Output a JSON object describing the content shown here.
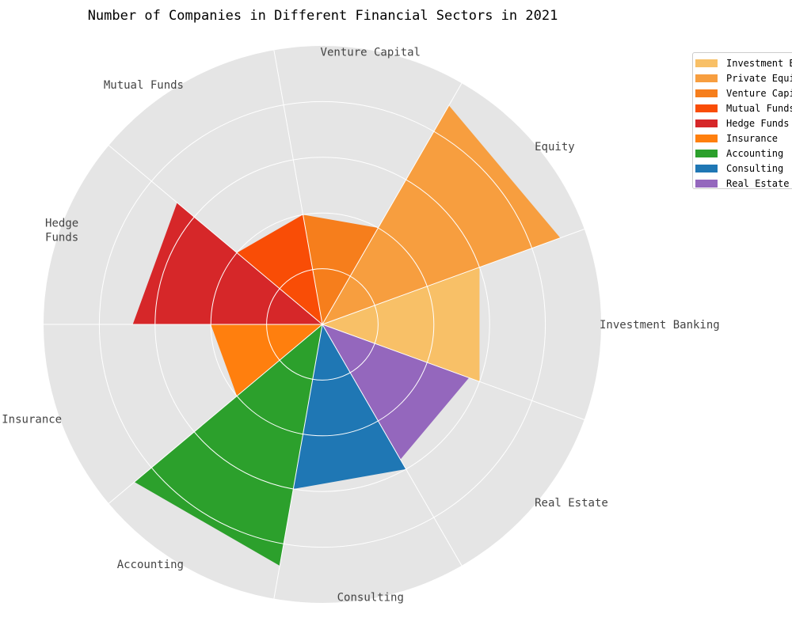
{
  "chart_data": {
    "type": "polar-area",
    "title": "Number of Companies in Different Financial Sectors in 2021",
    "radial_ticks": [
      50,
      100,
      150,
      200
    ],
    "rmax": 250,
    "categories": [
      "Investment Banking",
      "Private Equity",
      "Venture Capital",
      "Mutual Funds",
      "Hedge Funds",
      "Insurance",
      "Accounting",
      "Consulting",
      "Real Estate"
    ],
    "tick_labels": [
      "Investment Banking",
      "Equity",
      "Venture Capital",
      "Mutual Funds",
      "Hedge\nFunds",
      "Insurance",
      "Accounting",
      "Consulting",
      "Real Estate"
    ],
    "values": [
      150,
      227,
      100,
      100,
      170,
      100,
      220,
      150,
      140
    ],
    "colors": [
      "#F8C067",
      "#F79E3F",
      "#F67E1C",
      "#F94D06",
      "#D62729",
      "#FF7F0E",
      "#2CA02C",
      "#1F77B4",
      "#9467BD"
    ],
    "legend": {
      "placement": "top-right",
      "labels": [
        "Investment Banking",
        "Private Equity",
        "Venture Capital",
        "Mutual Funds",
        "Hedge Funds",
        "Insurance",
        "Accounting",
        "Consulting",
        "Real Estate"
      ]
    },
    "grid": true
  }
}
